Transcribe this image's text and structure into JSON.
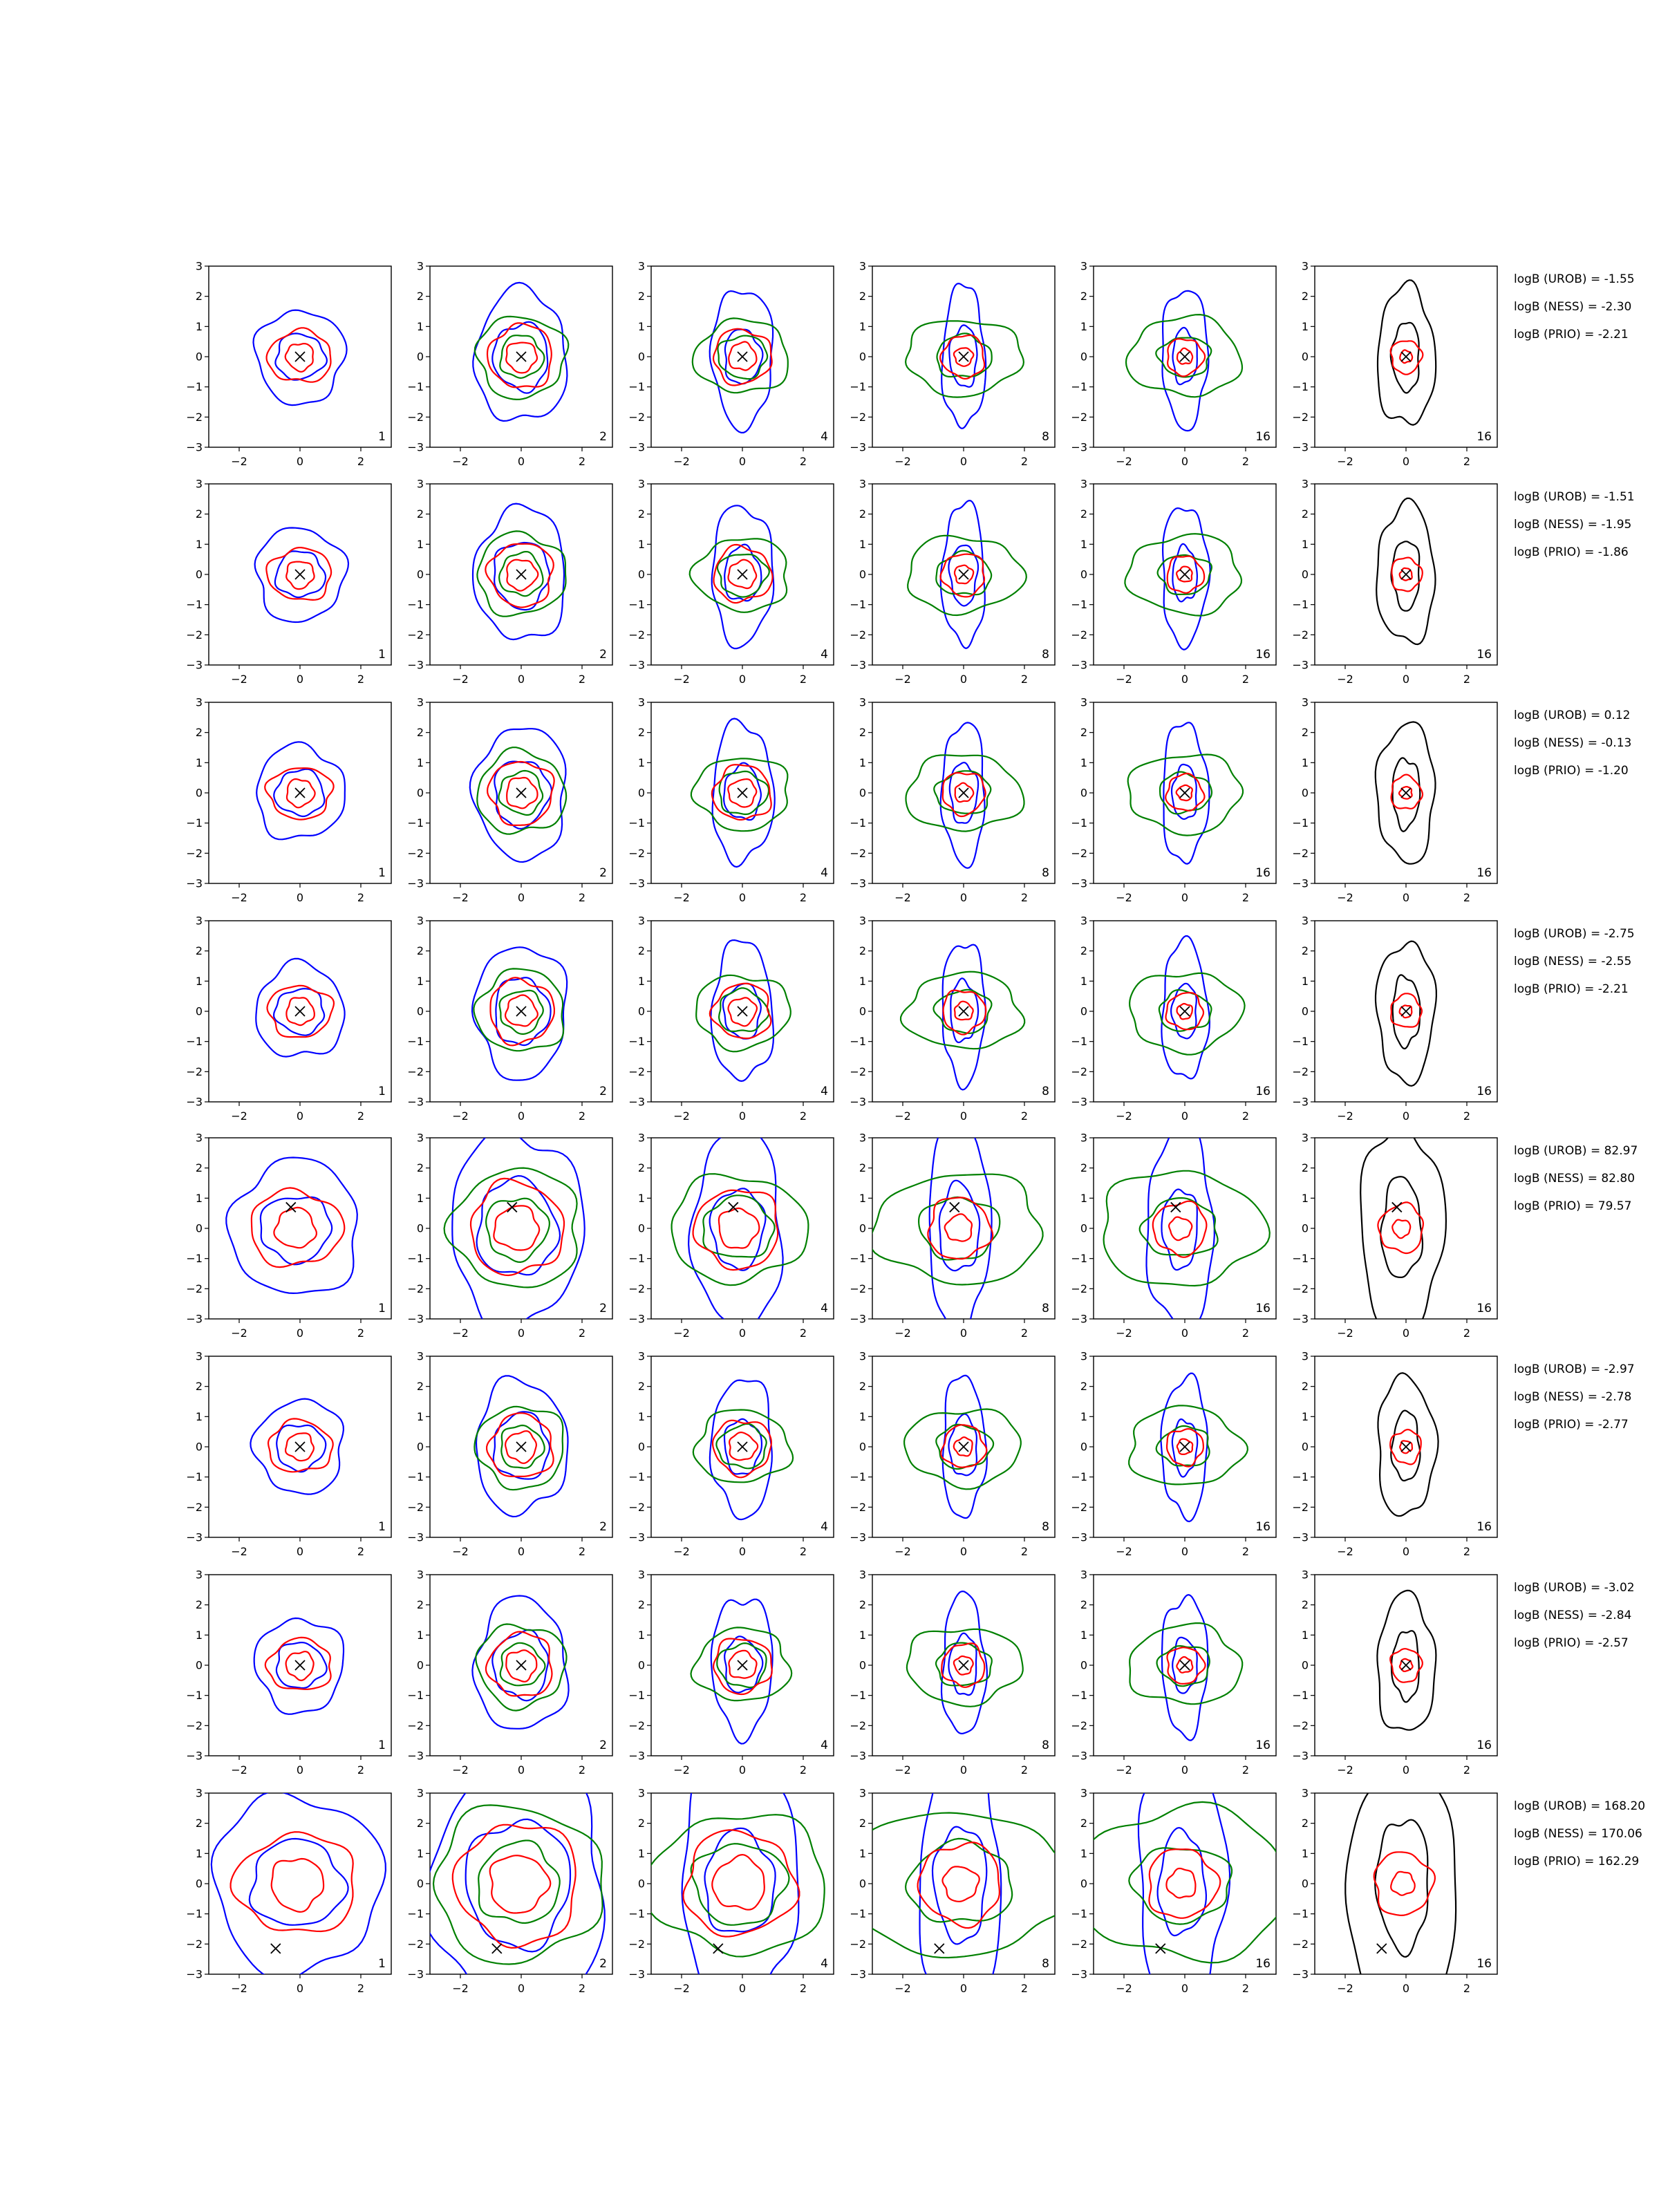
{
  "chart_data": {
    "type": "contour-grid",
    "rows": 8,
    "cols": 6,
    "xlim": [
      -3,
      3
    ],
    "ylim": [
      -3,
      3
    ],
    "x_ticks": [
      -2,
      0,
      2
    ],
    "y_ticks": [
      -3,
      -2,
      -1,
      0,
      1,
      2,
      3
    ],
    "x_tick_labels": [
      "−2",
      "0",
      "2"
    ],
    "y_tick_labels": [
      "−3",
      "−2",
      "−1",
      "0",
      "1",
      "2",
      "3"
    ],
    "col_labels": [
      "1",
      "2",
      "4",
      "8",
      "16",
      "16"
    ],
    "colors": {
      "blue": "#0000ff",
      "red": "#ff0000",
      "green": "#008000",
      "black": "#000000"
    },
    "row_markers": [
      {
        "x": 0,
        "y": 0
      },
      {
        "x": 0,
        "y": 0
      },
      {
        "x": 0,
        "y": 0
      },
      {
        "x": 0,
        "y": 0
      },
      {
        "x": -0.3,
        "y": 0.7
      },
      {
        "x": 0,
        "y": 0
      },
      {
        "x": 0,
        "y": 0
      },
      {
        "x": -0.8,
        "y": -2.15
      }
    ],
    "annotations": [
      [
        "logB (UROB) = -1.55",
        "logB (NESS) = -2.30",
        "logB (PRIO) = -2.21"
      ],
      [
        "logB (UROB) = -1.51",
        "logB (NESS) = -1.95",
        "logB (PRIO) = -1.86"
      ],
      [
        "logB (UROB) = 0.12",
        "logB (NESS) = -0.13",
        "logB (PRIO) = -1.20"
      ],
      [
        "logB (UROB) = -2.75",
        "logB (NESS) = -2.55",
        "logB (PRIO) = -2.21"
      ],
      [
        "logB (UROB) = 82.97",
        "logB (NESS) = 82.80",
        "logB (PRIO) = 79.57"
      ],
      [
        "logB (UROB) = -2.97",
        "logB (NESS) = -2.78",
        "logB (PRIO) = -2.77"
      ],
      [
        "logB (UROB) = -3.02",
        "logB (NESS) = -2.84",
        "logB (PRIO) = -2.57"
      ],
      [
        "logB (UROB) = 168.20",
        "logB (NESS) = 170.06",
        "logB (PRIO) = 162.29"
      ]
    ],
    "typical_row": [
      [
        {
          "color": "blue",
          "cx": 0,
          "cy": 0,
          "rx": 1.45,
          "ry": 1.55
        },
        {
          "color": "blue",
          "cx": 0,
          "cy": 0,
          "rx": 0.8,
          "ry": 0.75
        },
        {
          "color": "red",
          "cx": 0,
          "cy": 0,
          "rx": 1.05,
          "ry": 0.85
        },
        {
          "color": "red",
          "cx": 0,
          "cy": 0,
          "rx": 0.45,
          "ry": 0.45
        }
      ],
      [
        {
          "color": "blue",
          "cx": 0,
          "cy": 0,
          "rx": 1.5,
          "ry": 2.2
        },
        {
          "color": "blue",
          "cx": 0,
          "cy": 0,
          "rx": 0.9,
          "ry": 1.1
        },
        {
          "color": "green",
          "cx": 0,
          "cy": 0,
          "rx": 1.45,
          "ry": 1.35
        },
        {
          "color": "green",
          "cx": 0,
          "cy": 0,
          "rx": 0.7,
          "ry": 0.7
        },
        {
          "color": "red",
          "cx": 0,
          "cy": 0,
          "rx": 1.05,
          "ry": 1.05
        },
        {
          "color": "red",
          "cx": 0,
          "cy": 0,
          "rx": 0.5,
          "ry": 0.5
        }
      ],
      [
        {
          "color": "blue",
          "cx": 0,
          "cy": 0,
          "rx": 1.0,
          "ry": 2.3
        },
        {
          "color": "blue",
          "cx": 0,
          "cy": 0,
          "rx": 0.6,
          "ry": 0.9
        },
        {
          "color": "green",
          "cx": 0,
          "cy": 0,
          "rx": 1.55,
          "ry": 1.2
        },
        {
          "color": "green",
          "cx": 0,
          "cy": 0,
          "rx": 0.8,
          "ry": 0.7
        },
        {
          "color": "red",
          "cx": 0,
          "cy": 0,
          "rx": 0.95,
          "ry": 0.9
        },
        {
          "color": "red",
          "cx": 0,
          "cy": 0,
          "rx": 0.45,
          "ry": 0.45
        }
      ],
      [
        {
          "color": "blue",
          "cx": 0,
          "cy": 0,
          "rx": 0.7,
          "ry": 2.35
        },
        {
          "color": "blue",
          "cx": 0,
          "cy": 0,
          "rx": 0.45,
          "ry": 1.0
        },
        {
          "color": "green",
          "cx": 0,
          "cy": 0,
          "rx": 1.9,
          "ry": 1.25
        },
        {
          "color": "green",
          "cx": 0,
          "cy": 0,
          "rx": 0.9,
          "ry": 0.7
        },
        {
          "color": "red",
          "cx": 0,
          "cy": 0,
          "rx": 0.7,
          "ry": 0.7
        },
        {
          "color": "red",
          "cx": 0,
          "cy": 0,
          "rx": 0.3,
          "ry": 0.3
        }
      ],
      [
        {
          "color": "blue",
          "cx": 0,
          "cy": 0,
          "rx": 0.75,
          "ry": 2.3
        },
        {
          "color": "blue",
          "cx": 0,
          "cy": 0,
          "rx": 0.4,
          "ry": 0.9
        },
        {
          "color": "green",
          "cx": 0,
          "cy": 0,
          "rx": 1.85,
          "ry": 1.3
        },
        {
          "color": "green",
          "cx": 0,
          "cy": 0,
          "rx": 0.85,
          "ry": 0.65
        },
        {
          "color": "red",
          "cx": 0,
          "cy": 0,
          "rx": 0.6,
          "ry": 0.6
        },
        {
          "color": "red",
          "cx": 0,
          "cy": 0,
          "rx": 0.25,
          "ry": 0.25
        }
      ],
      [
        {
          "color": "black",
          "cx": 0,
          "cy": 0,
          "rx": 0.95,
          "ry": 2.3
        },
        {
          "color": "black",
          "cx": 0,
          "cy": 0,
          "rx": 0.45,
          "ry": 1.15
        },
        {
          "color": "red",
          "cx": 0,
          "cy": 0,
          "rx": 0.5,
          "ry": 0.55
        },
        {
          "color": "red",
          "cx": 0,
          "cy": 0,
          "rx": 0.2,
          "ry": 0.2
        }
      ]
    ],
    "outlier_row_shift": {
      "5": {
        "dx": -0.15,
        "dy": 0.0,
        "scale": 1.45
      },
      "8": {
        "dx": -0.1,
        "dy": 0.0,
        "scale": 1.9
      }
    }
  }
}
